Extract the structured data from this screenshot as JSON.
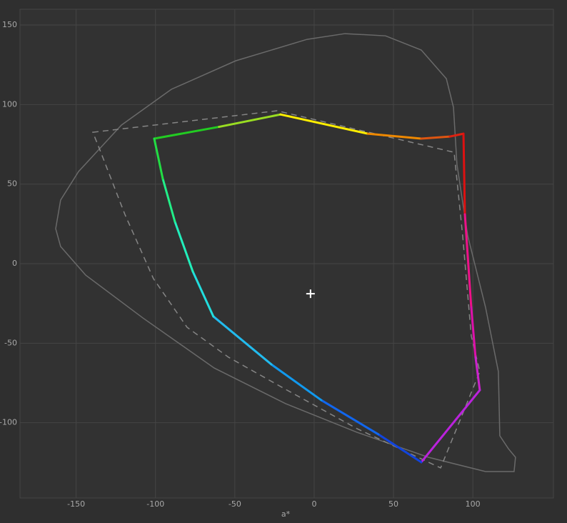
{
  "chart_data": {
    "type": "line",
    "xlabel": "a*",
    "xlim": [
      -185.4,
      150.8
    ],
    "ylim": [
      -147.3,
      159.9
    ],
    "xticks": [
      -150,
      -100,
      -50,
      0,
      50,
      100
    ],
    "yticks": [
      -100,
      -50,
      0,
      50,
      100,
      150
    ],
    "grid": true,
    "series": [
      {
        "color": "#6a6a6a",
        "dash": "none",
        "closed": true,
        "x": [
          19.4,
          -4.5,
          -49.5,
          -90,
          -121.5,
          -148.5,
          -159.8,
          -162.9,
          -159.8,
          -144,
          -108,
          -63,
          -18,
          27,
          72,
          108,
          126,
          126.9,
          122.4,
          117,
          116.1,
          108,
          96.8,
          90,
          87.8,
          83.3,
          67.5,
          45
        ],
        "y": [
          144.6,
          141,
          127.5,
          109.6,
          87.1,
          57.9,
          40,
          22,
          10.8,
          -7.2,
          -34.1,
          -65.6,
          -88,
          -106,
          -121.7,
          -130.7,
          -130.7,
          -121.7,
          -116.3,
          -108.2,
          -67.8,
          -27.4,
          17.5,
          62.4,
          98.3,
          116.3,
          134.3,
          143.2
        ]
      },
      {
        "color": "#858585",
        "dash": "8 6",
        "closed": true,
        "x": [
          -139.5,
          -23.4,
          88.2,
          93.6,
          99.0,
          104.4,
          79.7,
          27.0,
          -18.0,
          -54.0,
          -80.1,
          -101.3,
          -119.3,
          -135.0
        ],
        "y": [
          82.6,
          96.1,
          70.0,
          17.5,
          -45.4,
          -67.8,
          -128.4,
          -103.7,
          -79.0,
          -58.8,
          -40.0,
          -9.4,
          31.0,
          71.4
        ]
      },
      {
        "color": "#22cc22",
        "dash": "none",
        "closed": true,
        "x": [
          -100.8,
          -60,
          -21.2,
          33.8,
          67.5,
          85.5,
          94.1,
          95,
          99,
          101.7,
          104.4,
          67.5,
          40.5,
          4.5,
          -27,
          -63.5,
          -76.5,
          -87.8,
          -95.4
        ],
        "y": [
          78.6,
          86,
          93.8,
          81.7,
          78.6,
          79.9,
          81.7,
          31,
          -27.4,
          -58.8,
          -79.5,
          -124.8,
          -107.3,
          -85.8,
          -63.3,
          -33.2,
          -4.9,
          26.5,
          53.4
        ],
        "colors": [
          "#22cc22",
          "#99dd22",
          "#ffee00",
          "#ee8800",
          "#dd5511",
          "#dd2211",
          "#dd1111",
          "#ee1188",
          "#dd11aa",
          "#cc22cc",
          "#bb22dd",
          "#1144dd",
          "#1166ee",
          "#1199ee",
          "#22bbee",
          "#22dddd",
          "#22eebb",
          "#22ee88",
          "#22dd44"
        ]
      }
    ],
    "marker": {
      "x": -2.3,
      "y": -18.9,
      "color": "#ffffff"
    }
  }
}
